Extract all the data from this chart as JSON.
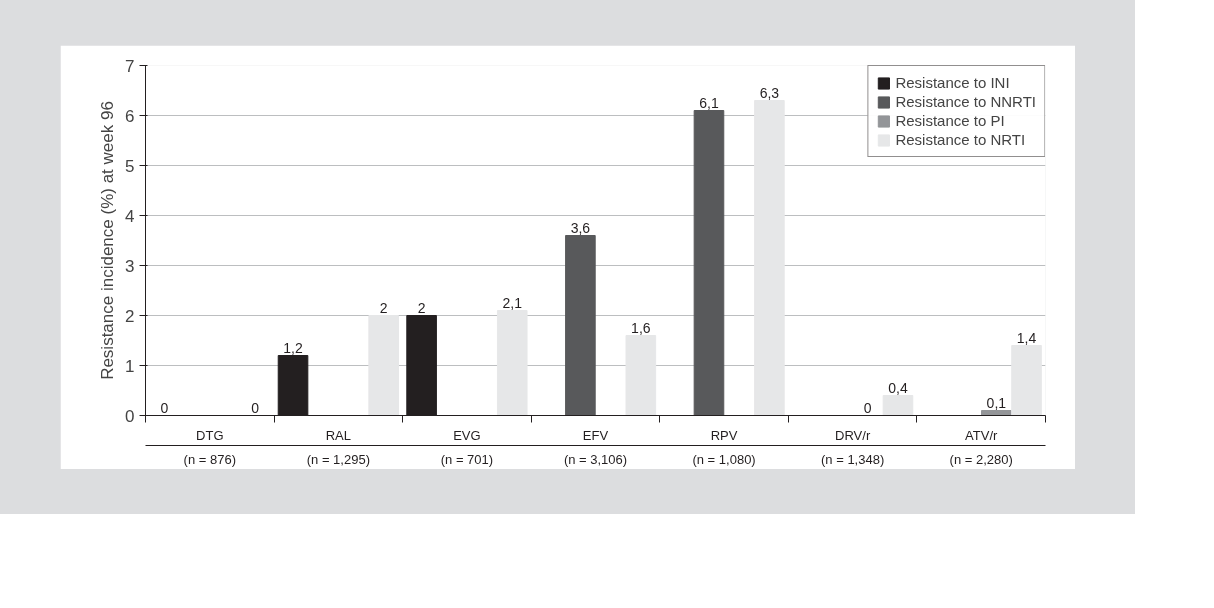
{
  "chart_data": {
    "type": "bar",
    "ylabel": "Resistance incidence (%) at week 96",
    "categories": [
      "DTG\n(n = 876)",
      "RAL\n(n = 1,295)",
      "EVG\n(n = 701)",
      "EFV\n(n = 3,106)",
      "RPV\n(n = 1,080)",
      "DRV/r\n(n = 1,348)",
      "ATV/r\n(n = 2,280)"
    ],
    "series": [
      {
        "name": "Resistance to INI",
        "color": "#231f20",
        "values": [
          0,
          1.2,
          2,
          null,
          null,
          null,
          null
        ],
        "value_labels": [
          "0",
          "1,2",
          "2",
          null,
          null,
          null,
          null
        ]
      },
      {
        "name": "Resistance to NNRTI",
        "color": "#58595b",
        "values": [
          null,
          null,
          null,
          3.6,
          6.1,
          null,
          null
        ],
        "value_labels": [
          null,
          null,
          null,
          "3,6",
          "6,1",
          null,
          null
        ]
      },
      {
        "name": "Resistance to PI",
        "color": "#939598",
        "values": [
          null,
          null,
          null,
          null,
          null,
          0,
          0.1
        ],
        "value_labels": [
          null,
          null,
          null,
          null,
          null,
          "0",
          "0,1"
        ]
      },
      {
        "name": "Resistance to NRTI",
        "color": "#e6e7e8",
        "values": [
          0,
          2,
          2.1,
          1.6,
          6.3,
          0.4,
          1.4
        ],
        "value_labels": [
          "0",
          "2",
          "2,1",
          "1,6",
          "6,3",
          "0,4",
          "1,4"
        ]
      }
    ],
    "ylim": [
      0,
      7
    ],
    "yticks": [
      0,
      1,
      2,
      3,
      4,
      5,
      6,
      7
    ],
    "grid": "y",
    "legend": "top right"
  }
}
